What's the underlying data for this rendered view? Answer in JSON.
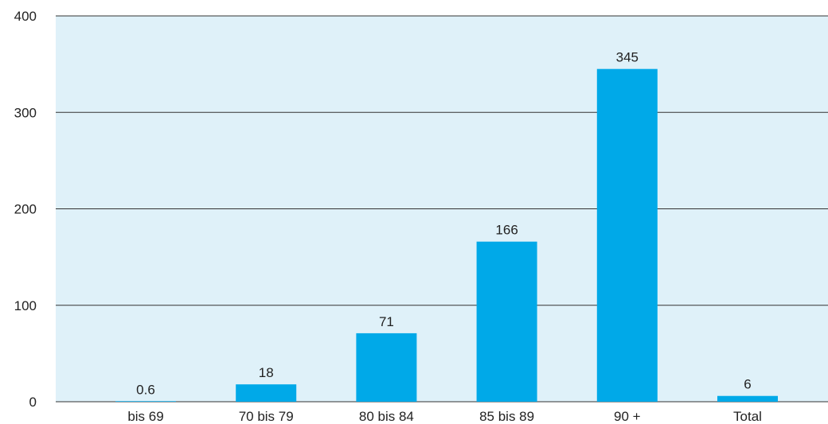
{
  "chart_data": {
    "type": "bar",
    "title": "",
    "xlabel": "",
    "ylabel": "",
    "categories": [
      "bis 69",
      "70 bis 79",
      "80 bis 84",
      "85 bis 89",
      "90 +",
      "Total"
    ],
    "values": [
      0.6,
      18,
      71,
      166,
      345,
      6
    ],
    "value_labels": [
      "0.6",
      "18",
      "71",
      "166",
      "345",
      "6"
    ],
    "ylim": [
      0,
      400
    ],
    "yticks": [
      0,
      100,
      200,
      300,
      400
    ],
    "grid": true,
    "legend": "none",
    "colors": {
      "bar": "#00a9e8",
      "plot_background": "#dff1f9",
      "gridline": "#333333",
      "text": "#222222"
    }
  }
}
